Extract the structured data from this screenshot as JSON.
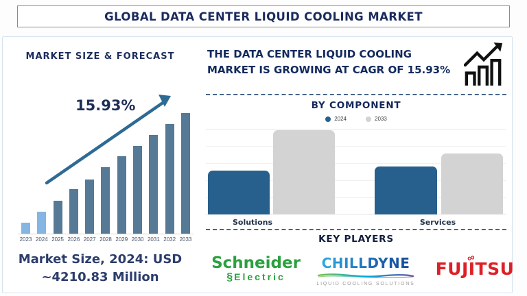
{
  "title": "GLOBAL DATA CENTER LIQUID COOLING MARKET",
  "left_panel": {
    "heading": "MARKET SIZE & FORECAST",
    "cagr_label": "15.93%",
    "footer_line1": "Market Size, 2024: USD",
    "footer_line2": "~4210.83 Million"
  },
  "right_panel": {
    "headline_line1": "THE DATA CENTER LIQUID COOLING",
    "headline_line2": "MARKET IS GROWING AT CAGR OF 15.93%",
    "by_component": {
      "heading": "BY COMPONENT"
    },
    "key_players": {
      "heading": "KEY PLAYERS",
      "players": [
        {
          "name": "Schneider Electric",
          "line1": "Schneider",
          "line2": "Electric",
          "glyph_icon": "§",
          "color": "#2aa13e"
        },
        {
          "name": "CHILLDYNE",
          "tagline": "LIQUID COOLING SOLUTIONS",
          "color_start": "#2ea9df",
          "color_end": "#164a97"
        },
        {
          "name": "FUJITSU",
          "infinity_icon": "∞",
          "color": "#dd2026"
        }
      ]
    }
  },
  "chart_data": [
    {
      "type": "bar",
      "title": "MARKET SIZE & FORECAST",
      "categories": [
        "2023",
        "2024",
        "2025",
        "2026",
        "2027",
        "2028",
        "2029",
        "2030",
        "2031",
        "2032",
        "2033"
      ],
      "values_relative_pct": [
        9,
        18,
        27,
        37,
        45,
        55,
        64,
        73,
        82,
        91,
        100
      ],
      "unit": "percent of 2033 bar height (y-axis not labeled in figure)",
      "anchor_value": {
        "year": "2024",
        "value": "USD ~4210.83 Million"
      },
      "annotation": {
        "text": "15.93%",
        "meaning": "CAGR growth arrow"
      },
      "historical_years": 2,
      "colors": {
        "historical": "#85b5e2",
        "forecast": "#567995",
        "arrow": "#2e6b94"
      },
      "grid": false,
      "legend": "none"
    },
    {
      "type": "bar",
      "title": "BY COMPONENT",
      "categories": [
        "Solutions",
        "Services"
      ],
      "series": [
        {
          "name": "2024",
          "color": "#27608c",
          "values_relative_pct": [
            52,
            57
          ]
        },
        {
          "name": "2033",
          "color": "#d3d3d3",
          "values_relative_pct": [
            100,
            72
          ]
        }
      ],
      "unit": "percent of tallest bar (y-axis not labeled in figure)",
      "legend_position": "top-center",
      "grid": true
    }
  ]
}
